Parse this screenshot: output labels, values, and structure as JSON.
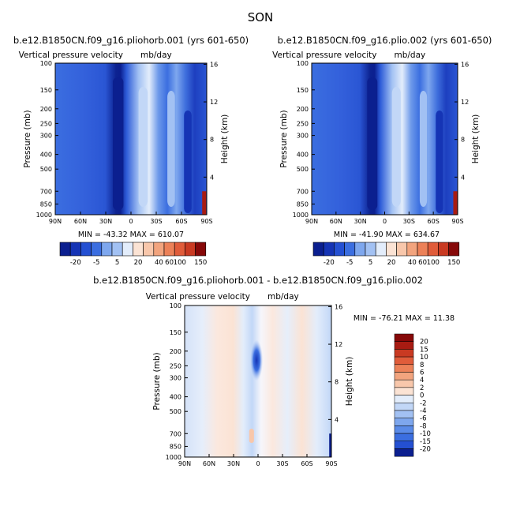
{
  "figure": {
    "title": "SON"
  },
  "colors": {
    "blue_scale": [
      "#0b1f8f",
      "#1534b5",
      "#2450d2",
      "#3b6ee0",
      "#5a8be8",
      "#7ea7ee",
      "#a2c1f3",
      "#c2d7f7",
      "#e3edfb"
    ],
    "warm_scale": [
      "#fbe3d4",
      "#f8c7ab",
      "#f2a47e",
      "#ec8158",
      "#e05c3a",
      "#c93a22",
      "#a81b12",
      "#860808"
    ],
    "diff_neutral": "#f6f6fb"
  },
  "chart_data": [
    {
      "type": "heatmap",
      "case_title": "b.e12.B1850CN.f09_g16.pliohorb.001 (yrs 601-650)",
      "subtitle": "Vertical pressure velocity",
      "units": "mb/day",
      "xlabel": "",
      "ylabel": "Pressure (mb)",
      "ylabel_right": "Height (km)",
      "x_ticks": [
        "90N",
        "60N",
        "30N",
        "0",
        "30S",
        "60S",
        "90S"
      ],
      "y_ticks": [
        "100",
        "150",
        "200",
        "250",
        "300",
        "400",
        "500",
        "700",
        "850",
        "1000"
      ],
      "y_ticks_right": [
        "16",
        "12",
        "8",
        "4"
      ],
      "y_scale": "log",
      "ylim": [
        1000,
        100
      ],
      "xlim": [
        "90N",
        "90S"
      ],
      "stats": "MIN = -43.32   MAX = 610.07",
      "min": -43.32,
      "max": 610.07,
      "colorbar_labels": [
        "-20",
        "-5",
        "5",
        "20",
        "40",
        "60",
        "100",
        "150"
      ],
      "colorbar_levels": 14,
      "dominant": "strong blue at 5-10N, white/light blue at 15S and 45S, red at 90S near surface"
    },
    {
      "type": "heatmap",
      "case_title": "b.e12.B1850CN.f09_g16.plio.002 (yrs 601-650)",
      "subtitle": "Vertical pressure velocity",
      "units": "mb/day",
      "xlabel": "",
      "ylabel": "Pressure (mb)",
      "ylabel_right": "Height (km)",
      "x_ticks": [
        "90N",
        "60N",
        "30N",
        "0",
        "30S",
        "60S",
        "90S"
      ],
      "y_ticks": [
        "100",
        "150",
        "200",
        "250",
        "300",
        "400",
        "500",
        "700",
        "850",
        "1000"
      ],
      "y_ticks_right": [
        "16",
        "12",
        "8",
        "4"
      ],
      "y_scale": "log",
      "ylim": [
        1000,
        100
      ],
      "xlim": [
        "90N",
        "90S"
      ],
      "stats": "MIN = -41.90   MAX = 634.67",
      "min": -41.9,
      "max": 634.67,
      "colorbar_labels": [
        "-20",
        "-5",
        "5",
        "20",
        "40",
        "60",
        "100",
        "150"
      ],
      "colorbar_levels": 14
    },
    {
      "type": "heatmap",
      "case_title": "b.e12.B1850CN.f09_g16.pliohorb.001 - b.e12.B1850CN.f09_g16.plio.002",
      "subtitle": "Vertical pressure velocity",
      "units": "mb/day",
      "xlabel": "",
      "ylabel": "Pressure (mb)",
      "ylabel_right": "Height (km)",
      "x_ticks": [
        "90N",
        "60N",
        "30N",
        "0",
        "30S",
        "60S",
        "90S"
      ],
      "y_ticks": [
        "100",
        "150",
        "200",
        "250",
        "300",
        "400",
        "500",
        "700",
        "850",
        "1000"
      ],
      "y_ticks_right": [
        "16",
        "12",
        "8",
        "4"
      ],
      "y_scale": "log",
      "ylim": [
        1000,
        100
      ],
      "xlim": [
        "90N",
        "90S"
      ],
      "stats": "MIN = -76.21   MAX = 11.38",
      "min": -76.21,
      "max": 11.38,
      "colorbar_labels": [
        "20",
        "15",
        "10",
        "8",
        "6",
        "4",
        "2",
        "0",
        "-2",
        "-4",
        "-6",
        "-8",
        "-10",
        "-15",
        "-20"
      ],
      "colorbar_levels": 16
    }
  ]
}
